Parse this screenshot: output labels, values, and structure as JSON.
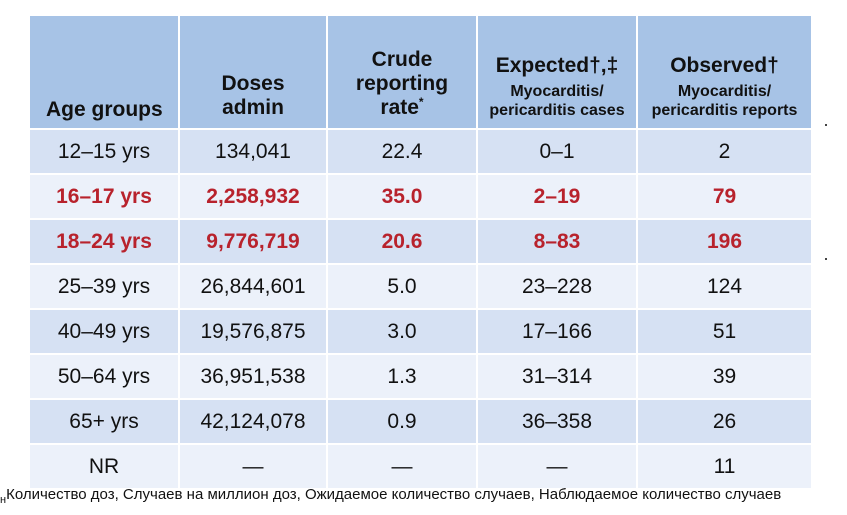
{
  "headers": {
    "age": "Age groups",
    "doses_l1": "Doses",
    "doses_l2": "admin",
    "crude_l1": "Crude",
    "crude_l2": "reporting",
    "crude_l3": "rate",
    "crude_sup": "*",
    "expected_main": "Expected†,‡",
    "expected_sub1": "Myocarditis/",
    "expected_sub2": "pericarditis cases",
    "observed_main": "Observed†",
    "observed_sub1": "Myocarditis/",
    "observed_sub2": "pericarditis reports"
  },
  "rows": [
    {
      "age": "12–15 yrs",
      "doses": "134,041",
      "rate": "22.4",
      "expected": "0–1",
      "observed": "2",
      "highlight": false
    },
    {
      "age": "16–17 yrs",
      "doses": "2,258,932",
      "rate": "35.0",
      "expected": "2–19",
      "observed": "79",
      "highlight": true
    },
    {
      "age": "18–24 yrs",
      "doses": "9,776,719",
      "rate": "20.6",
      "expected": "8–83",
      "observed": "196",
      "highlight": true
    },
    {
      "age": "25–39 yrs",
      "doses": "26,844,601",
      "rate": "5.0",
      "expected": "23–228",
      "observed": "124",
      "highlight": false
    },
    {
      "age": "40–49 yrs",
      "doses": "19,576,875",
      "rate": "3.0",
      "expected": "17–166",
      "observed": "51",
      "highlight": false
    },
    {
      "age": "50–64 yrs",
      "doses": "36,951,538",
      "rate": "1.3",
      "expected": "31–314",
      "observed": "39",
      "highlight": false
    },
    {
      "age": "65+ yrs",
      "doses": "42,124,078",
      "rate": "0.9",
      "expected": "36–358",
      "observed": "26",
      "highlight": false
    },
    {
      "age": "NR",
      "doses": "—",
      "rate": "—",
      "expected": "—",
      "observed": "11",
      "highlight": false
    }
  ],
  "footer": {
    "mark": "н",
    "text": "Количество доз, Случаев на миллион доз, Ожидаемое количество случаев, Наблюдаемое количество случаев"
  },
  "colors": {
    "header_bg": "#a7c3e6",
    "row_dark": "#d6e1f3",
    "row_light": "#ecf1fa",
    "highlight_text": "#b8222c"
  }
}
